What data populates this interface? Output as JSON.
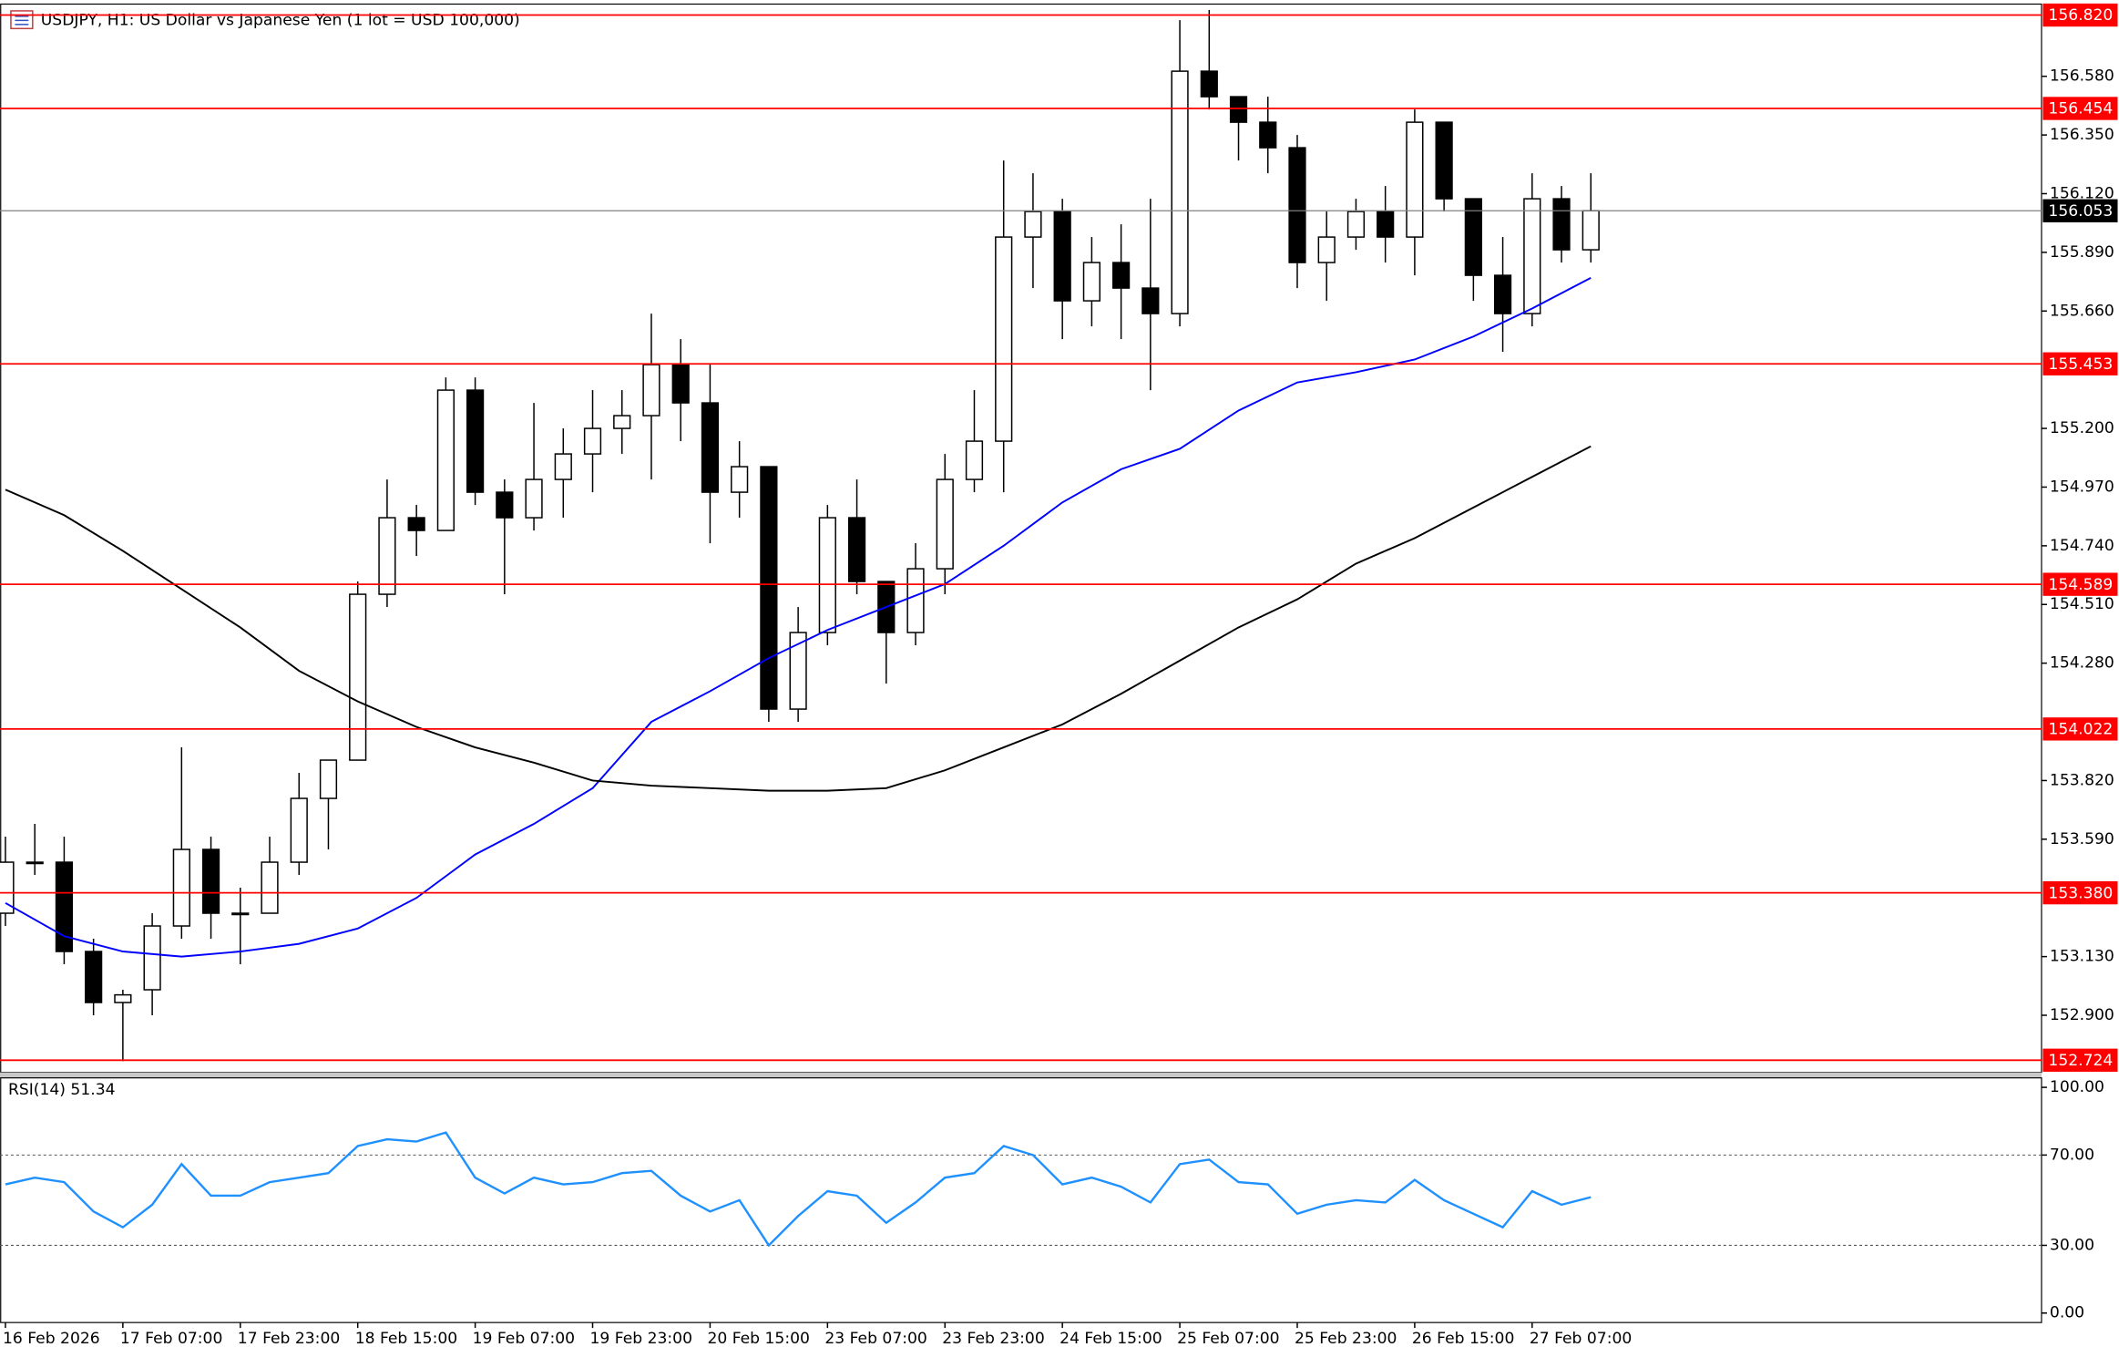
{
  "chart_data": [
    {
      "type": "candlestick",
      "title": "USDJPY, H1:  US Dollar vs Japanese Yen (1 lot = USD 100,000)",
      "categories": [
        "16 Feb 2026",
        null,
        null,
        null,
        "17 Feb 07:00",
        null,
        null,
        null,
        "17 Feb 23:00",
        null,
        null,
        null,
        "18 Feb 15:00",
        null,
        null,
        null,
        "19 Feb 07:00",
        null,
        null,
        null,
        "19 Feb 23:00",
        null,
        null,
        null,
        "20 Feb 15:00",
        null,
        null,
        null,
        "23 Feb 07:00",
        null,
        null,
        null,
        "23 Feb 23:00",
        null,
        null,
        null,
        "24 Feb 15:00",
        null,
        null,
        null,
        "25 Feb 07:00",
        null,
        null,
        null,
        "25 Feb 23:00",
        null,
        null,
        null,
        "26 Feb 15:00",
        null,
        null,
        null,
        "27 Feb 07:00",
        null,
        null
      ],
      "open": [
        153.3,
        153.5,
        153.5,
        153.15,
        152.95,
        153.0,
        153.25,
        153.55,
        153.3,
        153.3,
        153.5,
        153.75,
        153.9,
        154.55,
        154.85,
        154.8,
        155.35,
        154.95,
        154.85,
        155.0,
        155.1,
        155.2,
        155.25,
        155.45,
        155.3,
        154.95,
        155.05,
        154.1,
        154.4,
        154.85,
        154.6,
        154.4,
        154.65,
        155.0,
        155.15,
        155.95,
        156.05,
        155.7,
        155.85,
        155.75,
        155.65,
        156.6,
        156.5,
        156.4,
        156.3,
        155.85,
        155.95,
        156.05,
        155.95,
        156.4,
        156.1,
        155.8,
        155.65,
        156.1,
        155.9
      ],
      "high": [
        153.6,
        153.65,
        153.6,
        153.2,
        153.0,
        153.3,
        153.95,
        153.6,
        153.4,
        153.6,
        153.85,
        153.9,
        154.6,
        155.0,
        154.9,
        155.4,
        155.4,
        155.0,
        155.3,
        155.2,
        155.35,
        155.35,
        155.65,
        155.55,
        155.45,
        155.15,
        155.05,
        154.5,
        154.9,
        155.0,
        154.6,
        154.75,
        155.1,
        155.35,
        156.25,
        156.2,
        156.1,
        155.95,
        156.0,
        156.1,
        156.8,
        156.84,
        156.5,
        156.5,
        156.35,
        156.05,
        156.1,
        156.15,
        156.45,
        156.4,
        156.1,
        155.95,
        156.2,
        156.15,
        156.2
      ],
      "low": [
        153.25,
        153.45,
        153.1,
        152.9,
        152.72,
        152.9,
        153.2,
        153.2,
        153.1,
        153.3,
        153.45,
        153.55,
        153.9,
        154.5,
        154.7,
        154.8,
        154.9,
        154.55,
        154.8,
        154.85,
        154.95,
        155.1,
        155.0,
        155.15,
        154.75,
        154.85,
        154.05,
        154.05,
        154.35,
        154.55,
        154.2,
        154.35,
        154.55,
        154.95,
        154.95,
        155.75,
        155.55,
        155.6,
        155.55,
        155.35,
        155.6,
        156.45,
        156.25,
        156.2,
        155.75,
        155.7,
        155.9,
        155.85,
        155.8,
        156.05,
        155.7,
        155.5,
        155.6,
        155.85,
        155.85
      ],
      "close": [
        153.5,
        153.5,
        153.15,
        152.95,
        152.98,
        153.25,
        153.55,
        153.3,
        153.3,
        153.5,
        153.75,
        153.9,
        154.55,
        154.85,
        154.8,
        155.35,
        154.95,
        154.85,
        155.0,
        155.1,
        155.2,
        155.25,
        155.45,
        155.3,
        154.95,
        155.05,
        154.1,
        154.4,
        154.85,
        154.6,
        154.4,
        154.65,
        155.0,
        155.15,
        155.95,
        156.05,
        155.7,
        155.85,
        155.75,
        155.65,
        156.6,
        156.5,
        156.4,
        156.3,
        155.85,
        155.95,
        156.05,
        155.95,
        156.4,
        156.1,
        155.8,
        155.65,
        156.1,
        155.9,
        156.053
      ],
      "series": [
        {
          "color": "#0000ff",
          "x": [
            0,
            2,
            4,
            6,
            8,
            10,
            12,
            14,
            16,
            18,
            20,
            22,
            24,
            26,
            28,
            30,
            32,
            34,
            36,
            38,
            40,
            42,
            44,
            46,
            48,
            50,
            52,
            54
          ],
          "values": [
            153.34,
            153.21,
            153.15,
            153.13,
            153.15,
            153.18,
            153.24,
            153.36,
            153.53,
            153.65,
            153.79,
            154.05,
            154.17,
            154.3,
            154.41,
            154.5,
            154.59,
            154.74,
            154.91,
            155.04,
            155.12,
            155.27,
            155.38,
            155.42,
            155.47,
            155.56,
            155.67,
            155.79
          ]
        },
        {
          "color": "#000000",
          "x": [
            0,
            2,
            4,
            6,
            8,
            10,
            12,
            14,
            16,
            18,
            20,
            22,
            24,
            26,
            28,
            30,
            32,
            34,
            36,
            38,
            40,
            42,
            44,
            46,
            48,
            50,
            52,
            54
          ],
          "values": [
            154.96,
            154.86,
            154.72,
            154.57,
            154.42,
            154.25,
            154.13,
            154.03,
            153.95,
            153.89,
            153.82,
            153.8,
            153.79,
            153.78,
            153.78,
            153.79,
            153.86,
            153.95,
            154.04,
            154.16,
            154.29,
            154.42,
            154.53,
            154.67,
            154.77,
            154.89,
            155.01,
            155.13
          ]
        }
      ],
      "levels": [
        {
          "value": 156.82,
          "label": "156.820"
        },
        {
          "value": 156.454,
          "label": "156.454"
        },
        {
          "value": 155.453,
          "label": "155.453"
        },
        {
          "value": 154.589,
          "label": "154.589"
        },
        {
          "value": 154.022,
          "label": "154.022"
        },
        {
          "value": 153.38,
          "label": "153.380"
        },
        {
          "value": 152.724,
          "label": "152.724"
        }
      ],
      "level_color": "#ff0000",
      "last_price": {
        "value": 156.053,
        "label": "156.053"
      },
      "xlim": [
        -0.185,
        69.35
      ],
      "ylim": [
        152.676,
        156.863
      ],
      "yticks": [
        {
          "value": 156.58,
          "label": "156.580"
        },
        {
          "value": 156.35,
          "label": "156.350"
        },
        {
          "value": 156.12,
          "label": "156.120"
        },
        {
          "value": 155.89,
          "label": "155.890"
        },
        {
          "value": 155.66,
          "label": "155.660"
        },
        {
          "value": 155.2,
          "label": "155.200"
        },
        {
          "value": 154.97,
          "label": "154.970"
        },
        {
          "value": 154.74,
          "label": "154.740"
        },
        {
          "value": 154.51,
          "label": "154.510"
        },
        {
          "value": 154.28,
          "label": "154.280"
        },
        {
          "value": 153.82,
          "label": "153.820"
        },
        {
          "value": 153.59,
          "label": "153.590"
        },
        {
          "value": 153.13,
          "label": "153.130"
        },
        {
          "value": 152.9,
          "label": "152.900"
        }
      ]
    },
    {
      "type": "line",
      "title": "RSI(14) 51.34",
      "color": "#1e90ff",
      "values": [
        57,
        60,
        58,
        45,
        38,
        48,
        66,
        52,
        52,
        58,
        60,
        62,
        74,
        77,
        76,
        80,
        60,
        53,
        60,
        57,
        58,
        62,
        63,
        52,
        45,
        50,
        30,
        43,
        54,
        52,
        40,
        49,
        60,
        62,
        74,
        70,
        57,
        60,
        56,
        49,
        66,
        68,
        58,
        57,
        44,
        48,
        50,
        49,
        59,
        50,
        44,
        38,
        54,
        48,
        51.34
      ],
      "ylim": [
        -4.2,
        104.2
      ],
      "yticks": [
        {
          "value": 100,
          "label": "100.00"
        },
        {
          "value": 70,
          "label": "70.00"
        },
        {
          "value": 30,
          "label": "30.00"
        },
        {
          "value": 0,
          "label": "0.00"
        }
      ],
      "grid_levels": [
        70,
        30
      ]
    }
  ]
}
